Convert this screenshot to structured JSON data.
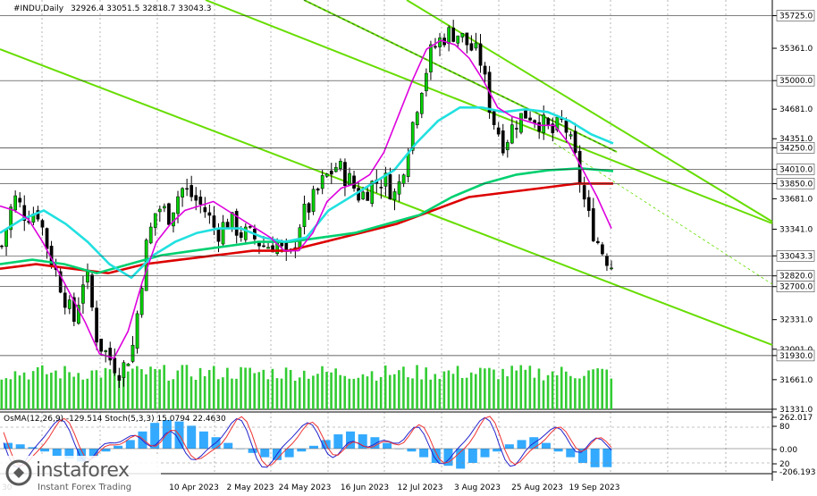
{
  "header": {
    "symbol": "#INDU,Daily",
    "ohlc": "32926.4 33051.5 32818.7 33043.3"
  },
  "chart_data": {
    "type": "candlestick",
    "y_range": [
      31330,
      35900
    ],
    "price_levels": [
      {
        "value": 35725,
        "label": "35725.0",
        "style": "highlight-line"
      },
      {
        "value": 35361,
        "label": "35361.0",
        "style": "tick"
      },
      {
        "value": 35000,
        "label": "35000.0",
        "style": "highlight-line"
      },
      {
        "value": 34681,
        "label": "34681.0",
        "style": "tick"
      },
      {
        "value": 34351,
        "label": "34351.0",
        "style": "tick"
      },
      {
        "value": 34250,
        "label": "34250.0",
        "style": "highlight-line"
      },
      {
        "value": 34010,
        "label": "34010.0",
        "style": "highlight-line"
      },
      {
        "value": 33850,
        "label": "33850.0",
        "style": "highlight-line"
      },
      {
        "value": 33681,
        "label": "33681.0",
        "style": "tick"
      },
      {
        "value": 33341,
        "label": "33341.0",
        "style": "tick"
      },
      {
        "value": 33043.3,
        "label": "33043.3",
        "style": "current"
      },
      {
        "value": 32820,
        "label": "32820.0",
        "style": "highlight-line"
      },
      {
        "value": 32700,
        "label": "32700.0",
        "style": "highlight-line"
      },
      {
        "value": 32331,
        "label": "32331.0",
        "style": "tick"
      },
      {
        "value": 32001,
        "label": "32001.0",
        "style": "tick"
      },
      {
        "value": 31930,
        "label": "31930.0",
        "style": "highlight-line"
      },
      {
        "value": 31661,
        "label": "31661.0",
        "style": "tick"
      },
      {
        "value": 31331,
        "label": "31331.0",
        "style": "tick"
      }
    ],
    "x_labels": [
      "10 Apr 2023",
      "2 May 2023",
      "24 May 2023",
      "16 Jun 2023",
      "12 Jul 2023",
      "3 Aug 2023",
      "25 Aug 2023",
      "19 Sep 2023"
    ],
    "x_label_truncated": "30",
    "close_path": [
      33150,
      33700,
      33500,
      33550,
      33050,
      32700,
      32300,
      32900,
      32100,
      31900,
      31750,
      32050,
      33100,
      33600,
      33500,
      33800,
      33700,
      33550,
      33300,
      33450,
      33300,
      33250,
      33150,
      33200,
      32950,
      33450,
      33650,
      33900,
      34050,
      33900,
      33700,
      33850,
      33900,
      33700,
      34300,
      34900,
      35350,
      35500,
      35550,
      35400,
      35250,
      34600,
      34300,
      34550,
      34650,
      34550,
      34400,
      34550,
      34100,
      33500,
      33150,
      32950
    ],
    "ma_fast_path": [
      33600,
      33550,
      33450,
      33200,
      32900,
      32600,
      32300,
      31950,
      31900,
      32200,
      32750,
      33200,
      33400,
      33550,
      33600,
      33650,
      33550,
      33450,
      33350,
      33250,
      33100,
      33100,
      33300,
      33650,
      33800,
      33850,
      33950,
      34200,
      34600,
      35000,
      35350,
      35450,
      35400,
      35250,
      35000,
      34700,
      34600,
      34550,
      34500,
      34500,
      34300,
      34000,
      33700,
      33350
    ],
    "ma_cyan_path": [
      33300,
      33450,
      33550,
      33400,
      33200,
      32950,
      32800,
      33050,
      33200,
      33300,
      33350,
      33350,
      33250,
      33200,
      33250,
      33550,
      33700,
      33850,
      34000,
      34300,
      34550,
      34700,
      34700,
      34650,
      34680,
      34650,
      34550,
      34400,
      34300
    ],
    "ma_green_path": [
      32950,
      33000,
      32950,
      32850,
      32950,
      33050,
      33100,
      33150,
      33200,
      33200,
      33250,
      33300,
      33400,
      33500,
      33700,
      33850,
      33950,
      34000,
      34020,
      33990
    ],
    "ma_red_path": [
      32900,
      32950,
      32900,
      32850,
      32950,
      33000,
      33050,
      33100,
      33100,
      33200,
      33300,
      33400,
      33550,
      33700,
      33750,
      33800,
      33850,
      33850
    ],
    "indicator": {
      "title": "OsMA(12,26,9) -129.514  Stoch(5,3,3) 15.0794 22.4630",
      "levels": [
        "262.017",
        "80",
        "0.00",
        "20",
        "-206.193"
      ]
    },
    "osma_values": [
      40,
      30,
      10,
      -20,
      -50,
      -70,
      -90,
      -60,
      -20,
      20,
      60,
      120,
      180,
      200,
      190,
      160,
      120,
      80,
      40,
      0,
      -30,
      -60,
      -80,
      -60,
      -20,
      20,
      60,
      100,
      120,
      100,
      80,
      40,
      0,
      -20,
      -60,
      -100,
      -120,
      -140,
      -100,
      -60,
      -20,
      30,
      60,
      80,
      40,
      -20,
      -60,
      -100,
      -130,
      -129
    ]
  },
  "colors": {
    "bull_candle": "#00d000",
    "bear_candle": "#000000",
    "ma_fast": "#dd00dd",
    "ma_cyan": "#22e0e0",
    "ma_green": "#00d070",
    "ma_red": "#dd0000",
    "channel": "#66dd00",
    "osma": "#33aaff",
    "stoch_main": "#2222cc",
    "stoch_signal": "#ee3333",
    "volume": "#33cc33"
  },
  "brand": {
    "name": "instaforex",
    "tagline": "Instant Forex Trading"
  }
}
